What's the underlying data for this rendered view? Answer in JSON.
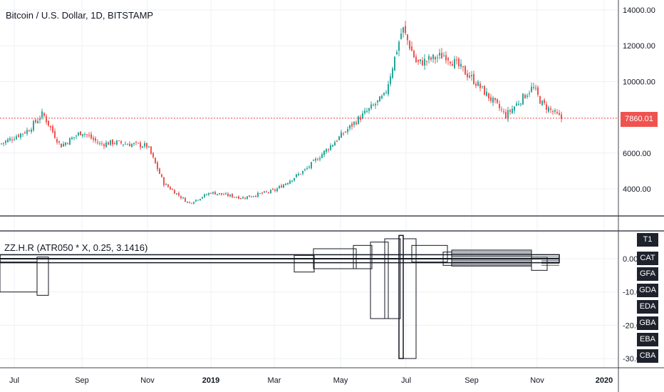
{
  "main_title": "Bitcoin / U.S. Dollar, 1D, BITSTAMP",
  "indicator_title": "ZZ.H.R (ATR050 * X, 0.25, 3.1416)",
  "last_price": "7860.01",
  "colors": {
    "up": "#26a69a",
    "down": "#ef5350",
    "grid": "#eef0f3",
    "axis_text": "#131722",
    "tag_bg": "#1e222d",
    "badge_bg": "#ef5350"
  },
  "indicator_tags": [
    "T1",
    "CAT",
    "GFA",
    "GDA",
    "EDA",
    "GBA",
    "EBA",
    "CBA"
  ],
  "chart_data": [
    {
      "type": "candlestick",
      "ylim": [
        2800,
        14400
      ],
      "y_ticks": [
        "4000.00",
        "6000.00",
        "8000.00",
        "10000.00",
        "12000.00",
        "14000.00"
      ],
      "x_ticks": [
        "Jul",
        "Sep",
        "Nov",
        "2019",
        "Mar",
        "May",
        "Jul",
        "Sep",
        "Nov",
        "2020"
      ],
      "approx_close_path": [
        [
          "Jul",
          6500
        ],
        [
          "Jul 20",
          7300
        ],
        [
          "Aug",
          8200
        ],
        [
          "Aug 15",
          6400
        ],
        [
          "Sep",
          7200
        ],
        [
          "Sep 15",
          6500
        ],
        [
          "Oct",
          6600
        ],
        [
          "Nov",
          6400
        ],
        [
          "Nov 20",
          4300
        ],
        [
          "Dec 15",
          3200
        ],
        [
          "2019",
          3800
        ],
        [
          "Feb",
          3500
        ],
        [
          "Mar",
          3900
        ],
        [
          "Apr",
          5100
        ],
        [
          "May",
          7800
        ],
        [
          "Jun",
          9200
        ],
        [
          "Jun 26",
          13000
        ],
        [
          "Jul",
          11000
        ],
        [
          "Aug",
          11500
        ],
        [
          "Sep",
          10200
        ],
        [
          "Oct",
          8100
        ],
        [
          "Oct 26",
          9700
        ],
        [
          "Nov",
          8800
        ],
        [
          "Nov 20",
          7860
        ]
      ]
    },
    {
      "type": "indicator",
      "ylim": [
        -32,
        8
      ],
      "y_ticks": [
        "0.00",
        "-10.00",
        "-20.00",
        "-30.00"
      ]
    }
  ]
}
